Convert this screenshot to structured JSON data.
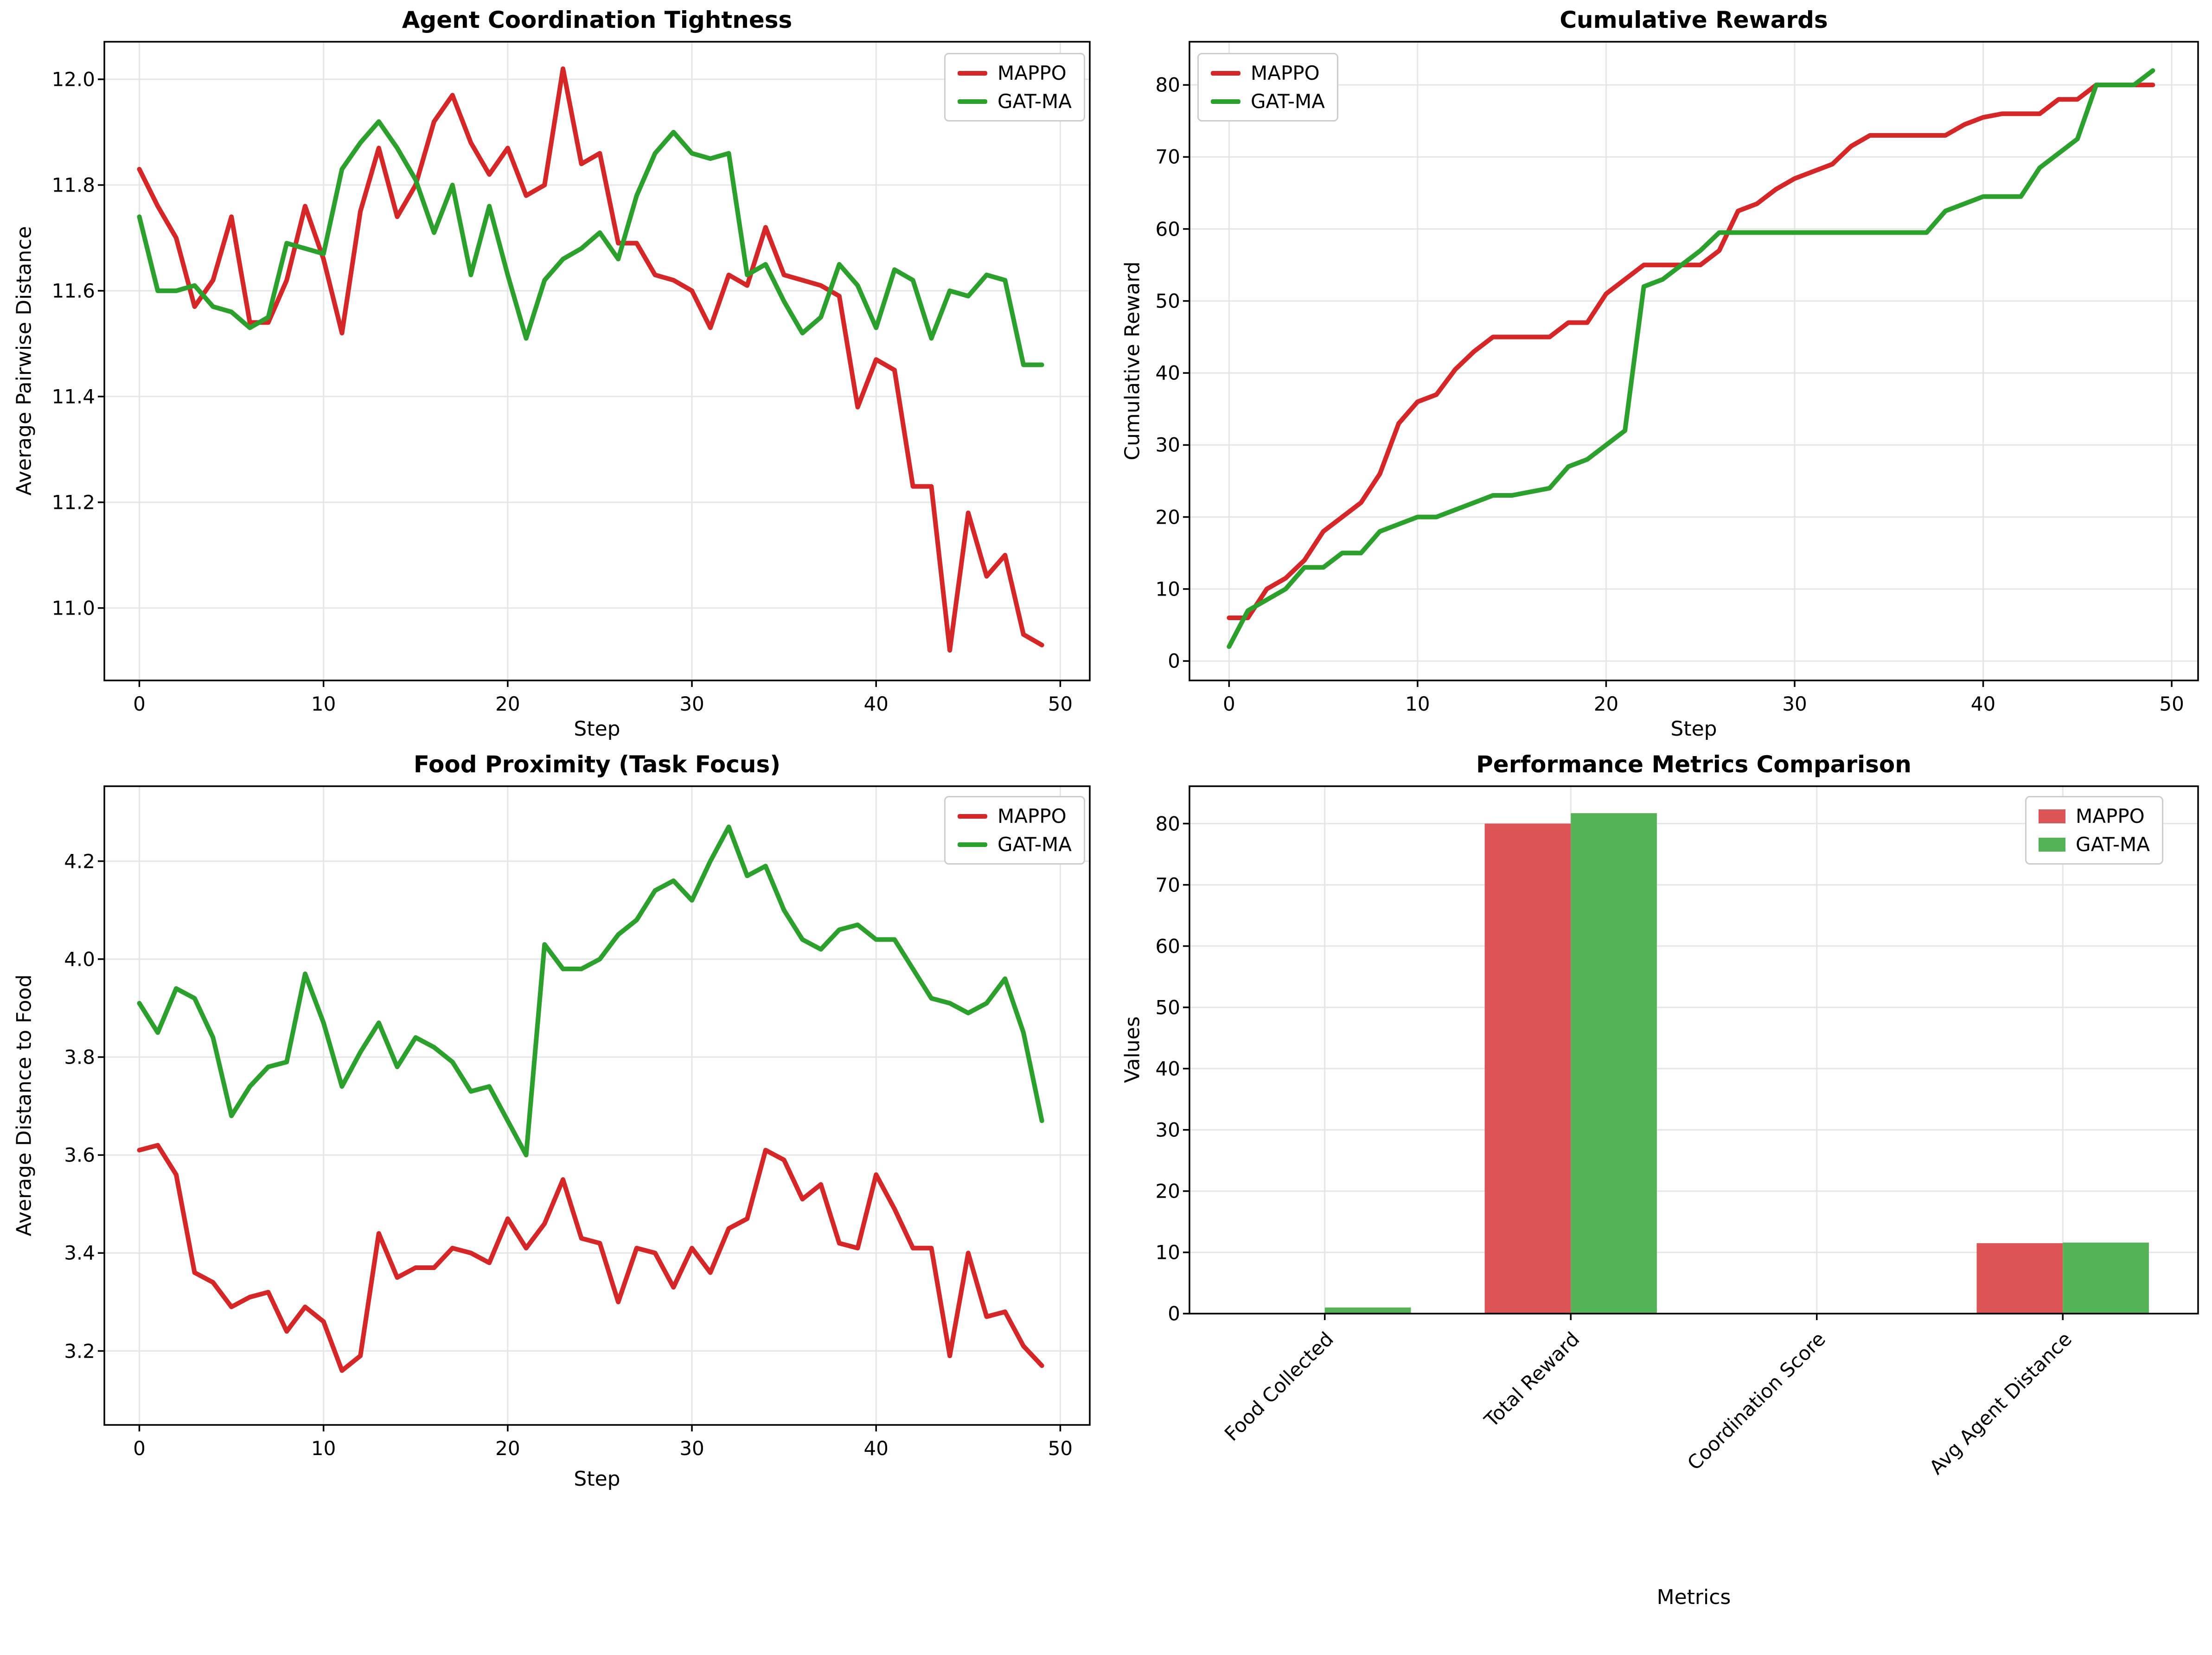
{
  "figure": {
    "background": "#ffffff",
    "grid_color": "#e6e6e6",
    "spine_color": "#000000",
    "accent_red": "#d62728",
    "accent_green": "#2ca02c",
    "bar_red": "#dd5456",
    "bar_green": "#55b357"
  },
  "chart_data": [
    {
      "type": "line",
      "title": "Agent Coordination Tightness",
      "xlabel": "Step",
      "ylabel": "Average Pairwise Distance",
      "x": [
        0,
        1,
        2,
        3,
        4,
        5,
        6,
        7,
        8,
        9,
        10,
        11,
        12,
        13,
        14,
        15,
        16,
        17,
        18,
        19,
        20,
        21,
        22,
        23,
        24,
        25,
        26,
        27,
        28,
        29,
        30,
        31,
        32,
        33,
        34,
        35,
        36,
        37,
        38,
        39,
        40,
        41,
        42,
        43,
        44,
        45,
        46,
        47,
        48,
        49
      ],
      "series": [
        {
          "name": "MAPPO",
          "color": "#d62728",
          "values": [
            11.83,
            11.76,
            11.7,
            11.57,
            11.62,
            11.74,
            11.54,
            11.54,
            11.62,
            11.76,
            11.66,
            11.52,
            11.75,
            11.87,
            11.74,
            11.8,
            11.92,
            11.97,
            11.88,
            11.82,
            11.87,
            11.78,
            11.8,
            12.02,
            11.84,
            11.86,
            11.69,
            11.69,
            11.63,
            11.62,
            11.6,
            11.53,
            11.63,
            11.61,
            11.72,
            11.63,
            11.62,
            11.61,
            11.59,
            11.38,
            11.47,
            11.45,
            11.23,
            11.23,
            10.92,
            11.18,
            11.06,
            11.1,
            10.95,
            10.93
          ]
        },
        {
          "name": "GAT-MA",
          "color": "#2ca02c",
          "values": [
            11.74,
            11.6,
            11.6,
            11.61,
            11.57,
            11.56,
            11.53,
            11.55,
            11.69,
            11.68,
            11.67,
            11.83,
            11.88,
            11.92,
            11.87,
            11.81,
            11.71,
            11.8,
            11.63,
            11.76,
            11.63,
            11.51,
            11.62,
            11.66,
            11.68,
            11.71,
            11.66,
            11.78,
            11.86,
            11.9,
            11.86,
            11.85,
            11.86,
            11.63,
            11.65,
            11.58,
            11.52,
            11.55,
            11.65,
            11.61,
            11.53,
            11.64,
            11.62,
            11.51,
            11.6,
            11.59,
            11.63,
            11.62,
            11.46,
            11.46
          ]
        }
      ],
      "xlim": [
        -1.9,
        51.6
      ],
      "ylim": [
        10.863,
        12.071
      ],
      "xticks": [
        0,
        10,
        20,
        30,
        40,
        50
      ],
      "xtick_labels": [
        "0",
        "10",
        "20",
        "30",
        "40",
        "50"
      ],
      "yticks": [
        11.0,
        11.2,
        11.4,
        11.6,
        11.8,
        12.0
      ],
      "ytick_labels": [
        "11.0",
        "11.2",
        "11.4",
        "11.6",
        "11.8",
        "12.0"
      ],
      "grid": true,
      "legend_loc": "upper-right",
      "legend_style": "line"
    },
    {
      "type": "line",
      "title": "Cumulative Rewards",
      "xlabel": "Step",
      "ylabel": "Cumulative Reward",
      "x": [
        0,
        1,
        2,
        3,
        4,
        5,
        6,
        7,
        8,
        9,
        10,
        11,
        12,
        13,
        14,
        15,
        16,
        17,
        18,
        19,
        20,
        21,
        22,
        23,
        24,
        25,
        26,
        27,
        28,
        29,
        30,
        31,
        32,
        33,
        34,
        35,
        36,
        37,
        38,
        39,
        40,
        41,
        42,
        43,
        44,
        45,
        46,
        47,
        48,
        49
      ],
      "series": [
        {
          "name": "MAPPO",
          "color": "#d62728",
          "values": [
            6,
            6,
            10,
            11.5,
            14,
            18,
            20,
            22,
            26,
            33,
            36,
            37,
            40.5,
            43,
            45,
            45,
            45,
            45,
            47,
            47,
            51,
            53,
            55,
            55,
            55,
            55,
            57,
            62.5,
            63.5,
            65.5,
            67,
            68,
            69,
            71.5,
            73,
            73,
            73,
            73,
            73,
            74.5,
            75.5,
            76,
            76,
            76,
            78,
            78,
            80,
            80,
            80,
            80
          ]
        },
        {
          "name": "GAT-MA",
          "color": "#2ca02c",
          "values": [
            2,
            7,
            8.5,
            10,
            13,
            13,
            15,
            15,
            18,
            19,
            20,
            20,
            21,
            22,
            23,
            23,
            23.5,
            24,
            27,
            28,
            30,
            32,
            52,
            53,
            55,
            57,
            59.5,
            59.5,
            59.5,
            59.5,
            59.5,
            59.5,
            59.5,
            59.5,
            59.5,
            59.5,
            59.5,
            59.5,
            62.5,
            63.5,
            64.5,
            64.5,
            64.5,
            68.5,
            70.5,
            72.5,
            80,
            80,
            80,
            82
          ]
        }
      ],
      "xlim": [
        -2.1,
        51.4
      ],
      "ylim": [
        -2.7,
        86.0
      ],
      "xticks": [
        0,
        10,
        20,
        30,
        40,
        50
      ],
      "xtick_labels": [
        "0",
        "10",
        "20",
        "30",
        "40",
        "50"
      ],
      "yticks": [
        0,
        10,
        20,
        30,
        40,
        50,
        60,
        70,
        80
      ],
      "ytick_labels": [
        "0",
        "10",
        "20",
        "30",
        "40",
        "50",
        "60",
        "70",
        "80"
      ],
      "grid": true,
      "legend_loc": "upper-left",
      "legend_style": "line"
    },
    {
      "type": "line",
      "title": "Food Proximity (Task Focus)",
      "xlabel": "Step",
      "ylabel": "Average Distance to Food",
      "x": [
        0,
        1,
        2,
        3,
        4,
        5,
        6,
        7,
        8,
        9,
        10,
        11,
        12,
        13,
        14,
        15,
        16,
        17,
        18,
        19,
        20,
        21,
        22,
        23,
        24,
        25,
        26,
        27,
        28,
        29,
        30,
        31,
        32,
        33,
        34,
        35,
        36,
        37,
        38,
        39,
        40,
        41,
        42,
        43,
        44,
        45,
        46,
        47,
        48,
        49
      ],
      "series": [
        {
          "name": "MAPPO",
          "color": "#d62728",
          "values": [
            3.61,
            3.62,
            3.56,
            3.36,
            3.34,
            3.29,
            3.31,
            3.32,
            3.24,
            3.29,
            3.26,
            3.16,
            3.19,
            3.44,
            3.35,
            3.37,
            3.37,
            3.41,
            3.4,
            3.38,
            3.47,
            3.41,
            3.46,
            3.55,
            3.43,
            3.42,
            3.3,
            3.41,
            3.4,
            3.33,
            3.41,
            3.36,
            3.45,
            3.47,
            3.61,
            3.59,
            3.51,
            3.54,
            3.42,
            3.41,
            3.56,
            3.49,
            3.41,
            3.41,
            3.19,
            3.4,
            3.27,
            3.28,
            3.21,
            3.17
          ]
        },
        {
          "name": "GAT-MA",
          "color": "#2ca02c",
          "values": [
            3.91,
            3.85,
            3.94,
            3.92,
            3.84,
            3.68,
            3.74,
            3.78,
            3.79,
            3.97,
            3.87,
            3.74,
            3.81,
            3.87,
            3.78,
            3.84,
            3.82,
            3.79,
            3.73,
            3.74,
            3.67,
            3.6,
            4.03,
            3.98,
            3.98,
            4.0,
            4.05,
            4.08,
            4.14,
            4.16,
            4.12,
            4.2,
            4.27,
            4.17,
            4.19,
            4.1,
            4.04,
            4.02,
            4.06,
            4.07,
            4.04,
            4.04,
            3.98,
            3.92,
            3.91,
            3.89,
            3.91,
            3.96,
            3.85,
            3.67
          ]
        }
      ],
      "xlim": [
        -1.9,
        51.6
      ],
      "ylim": [
        3.049,
        4.353
      ],
      "xticks": [
        0,
        10,
        20,
        30,
        40,
        50
      ],
      "xtick_labels": [
        "0",
        "10",
        "20",
        "30",
        "40",
        "50"
      ],
      "yticks": [
        3.2,
        3.4,
        3.6,
        3.8,
        4.0,
        4.2
      ],
      "ytick_labels": [
        "3.2",
        "3.4",
        "3.6",
        "3.8",
        "4.0",
        "4.2"
      ],
      "grid": true,
      "legend_loc": "upper-right",
      "legend_style": "line"
    },
    {
      "type": "bar",
      "title": "Performance Metrics Comparison",
      "xlabel": "Metrics",
      "ylabel": "Values",
      "categories": [
        "Food Collected",
        "Total Reward",
        "Coordination Score",
        "Avg Agent Distance"
      ],
      "series": [
        {
          "name": "MAPPO",
          "color": "#dd5456",
          "values": [
            0,
            80.0,
            0,
            11.5
          ]
        },
        {
          "name": "GAT-MA",
          "color": "#55b357",
          "values": [
            1.0,
            81.7,
            0,
            11.6
          ]
        }
      ],
      "bar_width": 0.35,
      "xlim": [
        -0.55,
        3.55
      ],
      "ylim": [
        0,
        86.1
      ],
      "yticks": [
        0,
        10,
        20,
        30,
        40,
        50,
        60,
        70,
        80
      ],
      "ytick_labels": [
        "0",
        "10",
        "20",
        "30",
        "40",
        "50",
        "60",
        "70",
        "80"
      ],
      "grid": true,
      "legend_loc": "upper-right",
      "legend_style": "patch"
    }
  ]
}
